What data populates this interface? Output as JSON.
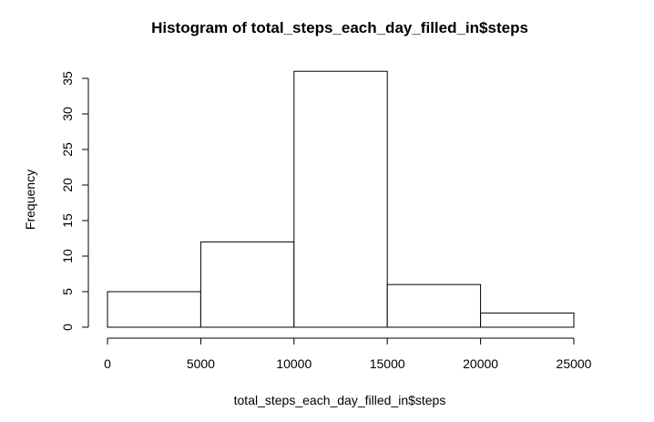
{
  "chart_data": {
    "type": "bar",
    "title": "Histogram of total_steps_each_day_filled_in$steps",
    "xlabel": "total_steps_each_day_filled_in$steps",
    "ylabel": "Frequency",
    "bins": [
      {
        "start": 0,
        "end": 5000,
        "count": 5
      },
      {
        "start": 5000,
        "end": 10000,
        "count": 12
      },
      {
        "start": 10000,
        "end": 15000,
        "count": 36
      },
      {
        "start": 15000,
        "end": 20000,
        "count": 6
      },
      {
        "start": 20000,
        "end": 25000,
        "count": 2
      }
    ],
    "xticks": [
      "0",
      "5000",
      "10000",
      "15000",
      "20000",
      "25000"
    ],
    "yticks": [
      "0",
      "5",
      "10",
      "15",
      "20",
      "25",
      "30",
      "35"
    ],
    "xlim": [
      0,
      25000
    ],
    "ylim": [
      0,
      36
    ],
    "grid": false,
    "colors": {
      "fill": "#ffffff",
      "stroke": "#000000"
    }
  }
}
